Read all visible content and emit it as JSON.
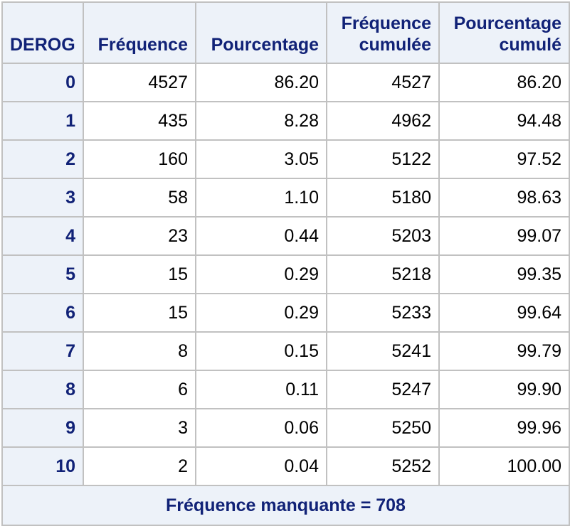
{
  "table": {
    "headers": {
      "col1": "DEROG",
      "col2": "Fréquence",
      "col3": "Pourcentage",
      "col4_line1": "Fréquence",
      "col4_line2": "cumulée",
      "col5_line1": "Pourcentage",
      "col5_line2": "cumulé"
    },
    "rows": [
      {
        "derog": "0",
        "freq": "4527",
        "pct": "86.20",
        "cum_freq": "4527",
        "cum_pct": "86.20"
      },
      {
        "derog": "1",
        "freq": "435",
        "pct": "8.28",
        "cum_freq": "4962",
        "cum_pct": "94.48"
      },
      {
        "derog": "2",
        "freq": "160",
        "pct": "3.05",
        "cum_freq": "5122",
        "cum_pct": "97.52"
      },
      {
        "derog": "3",
        "freq": "58",
        "pct": "1.10",
        "cum_freq": "5180",
        "cum_pct": "98.63"
      },
      {
        "derog": "4",
        "freq": "23",
        "pct": "0.44",
        "cum_freq": "5203",
        "cum_pct": "99.07"
      },
      {
        "derog": "5",
        "freq": "15",
        "pct": "0.29",
        "cum_freq": "5218",
        "cum_pct": "99.35"
      },
      {
        "derog": "6",
        "freq": "15",
        "pct": "0.29",
        "cum_freq": "5233",
        "cum_pct": "99.64"
      },
      {
        "derog": "7",
        "freq": "8",
        "pct": "0.15",
        "cum_freq": "5241",
        "cum_pct": "99.79"
      },
      {
        "derog": "8",
        "freq": "6",
        "pct": "0.11",
        "cum_freq": "5247",
        "cum_pct": "99.90"
      },
      {
        "derog": "9",
        "freq": "3",
        "pct": "0.06",
        "cum_freq": "5250",
        "cum_pct": "99.96"
      },
      {
        "derog": "10",
        "freq": "2",
        "pct": "0.04",
        "cum_freq": "5252",
        "cum_pct": "100.00"
      }
    ],
    "footer": "Fréquence manquante = 708"
  }
}
